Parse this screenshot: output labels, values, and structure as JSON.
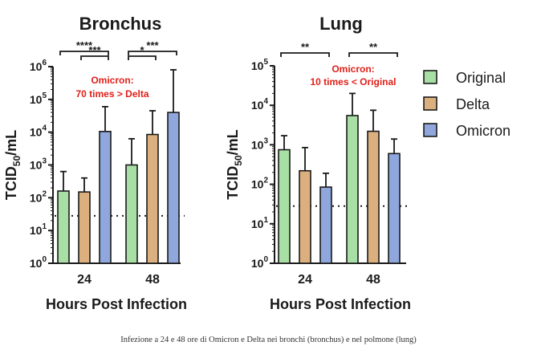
{
  "chart_data": [
    {
      "type": "bar",
      "title": "Bronchus",
      "xlabel": "Hours Post Infection",
      "ylabel": "TCID",
      "ylabel_sub": "50",
      "ylabel_tail": "/mL",
      "yscale": "log",
      "ylim": [
        1,
        1000000
      ],
      "y_ticks": [
        {
          "value": 1,
          "base": "10",
          "exp": "0"
        },
        {
          "value": 10,
          "base": "10",
          "exp": "1"
        },
        {
          "value": 100,
          "base": "10",
          "exp": "2"
        },
        {
          "value": 1000,
          "base": "10",
          "exp": "3"
        },
        {
          "value": 10000,
          "base": "10",
          "exp": "4"
        },
        {
          "value": 100000,
          "base": "10",
          "exp": "5"
        },
        {
          "value": 1000000,
          "base": "10",
          "exp": "6"
        }
      ],
      "categories": [
        "24",
        "48"
      ],
      "series": [
        {
          "name": "Original",
          "values": [
            160,
            1000
          ],
          "error_upper": [
            630,
            6300
          ]
        },
        {
          "name": "Delta",
          "values": [
            150,
            8500
          ],
          "error_upper": [
            400,
            45000
          ]
        },
        {
          "name": "Omicron",
          "values": [
            10500,
            40000
          ],
          "error_upper": [
            60000,
            800000
          ]
        }
      ],
      "reference_line": 28,
      "annotation": {
        "lines": [
          "Omicron:",
          "70 times > Delta"
        ],
        "color": "#e0201a"
      },
      "significance": [
        {
          "label": "****",
          "category": 0,
          "from": 0,
          "to": 2,
          "level": 1
        },
        {
          "label": "***",
          "category": 0,
          "from": 1,
          "to": 2,
          "level": 0
        },
        {
          "label": "***",
          "category": 1,
          "from": 0,
          "to": 2,
          "level": 1
        },
        {
          "label": "*",
          "category": 1,
          "from": 0,
          "to": 1,
          "level": 0
        }
      ]
    },
    {
      "type": "bar",
      "title": "Lung",
      "xlabel": "Hours Post Infection",
      "ylabel": "TCID",
      "ylabel_sub": "50",
      "ylabel_tail": "/mL",
      "yscale": "log",
      "ylim": [
        1,
        100000
      ],
      "y_ticks": [
        {
          "value": 1,
          "base": "10",
          "exp": "0"
        },
        {
          "value": 10,
          "base": "10",
          "exp": "1"
        },
        {
          "value": 100,
          "base": "10",
          "exp": "2"
        },
        {
          "value": 1000,
          "base": "10",
          "exp": "3"
        },
        {
          "value": 10000,
          "base": "10",
          "exp": "4"
        },
        {
          "value": 100000,
          "base": "10",
          "exp": "5"
        }
      ],
      "categories": [
        "24",
        "48"
      ],
      "series": [
        {
          "name": "Original",
          "values": [
            750,
            5500
          ],
          "error_upper": [
            1700,
            20000
          ]
        },
        {
          "name": "Delta",
          "values": [
            220,
            2200
          ],
          "error_upper": [
            850,
            7500
          ]
        },
        {
          "name": "Omicron",
          "values": [
            85,
            600
          ],
          "error_upper": [
            190,
            1400
          ]
        }
      ],
      "reference_line": 28,
      "annotation": {
        "lines": [
          "Omicron:",
          "10 times < Original"
        ],
        "color": "#e0201a"
      },
      "significance": [
        {
          "label": "**",
          "category": 0,
          "from": 0,
          "to": 2,
          "level": 1
        },
        {
          "label": "**",
          "category": 1,
          "from": 0,
          "to": 2,
          "level": 1
        }
      ]
    }
  ],
  "legend": {
    "placement": "right",
    "items": [
      {
        "label": "Original",
        "color": "#a8dfa4"
      },
      {
        "label": "Delta",
        "color": "#dcb07e"
      },
      {
        "label": "Omicron",
        "color": "#8fa7dc"
      }
    ]
  },
  "caption": "Infezione a 24 e 48 ore di Omicron e Delta nei bronchi (bronchus) e nel polmone (lung)"
}
